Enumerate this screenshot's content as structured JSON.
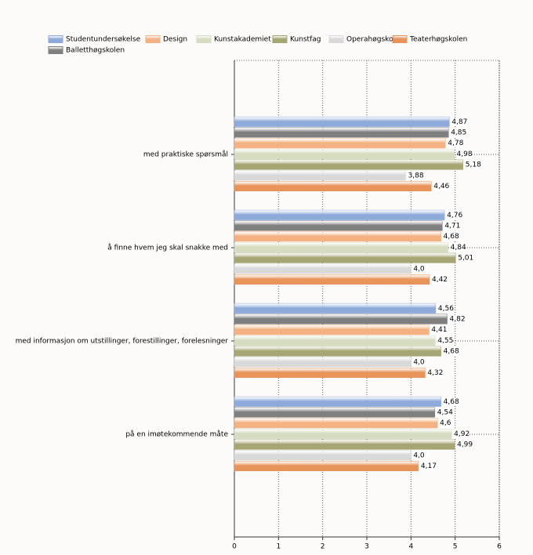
{
  "chart_data": {
    "type": "bar",
    "orientation": "horizontal",
    "categories": [
      "med praktiske spørsmål",
      "å finne hvem jeg skal snakke med",
      "med informasjon om utstillinger, forestillinger, forelesninger",
      "på en imøtekommende måte"
    ],
    "series": [
      {
        "name": "Studentundersøkelse",
        "color": "#8eaadb",
        "values": [
          4.87,
          4.76,
          4.56,
          4.68
        ],
        "value_labels": [
          "4,87",
          "4,76",
          "4,56",
          "4,68"
        ]
      },
      {
        "name": "Balletthøgskolen",
        "color": "#7f7f7f",
        "values": [
          4.85,
          4.71,
          4.82,
          4.54
        ],
        "value_labels": [
          "4,85",
          "4,71",
          "4,82",
          "4,54"
        ]
      },
      {
        "name": "Design",
        "color": "#f4b183",
        "values": [
          4.78,
          4.68,
          4.41,
          4.6
        ],
        "value_labels": [
          "4,78",
          "4,68",
          "4,41",
          "4,6"
        ]
      },
      {
        "name": "Kunstakademiet",
        "color": "#d6dcc0",
        "values": [
          4.98,
          4.84,
          4.55,
          4.92
        ],
        "value_labels": [
          "4,98",
          "4,84",
          "4,55",
          "4,92"
        ]
      },
      {
        "name": "Kunstfag",
        "color": "#a6a674",
        "values": [
          5.18,
          5.01,
          4.68,
          4.99
        ],
        "value_labels": [
          "5,18",
          "5,01",
          "4,68",
          "4,99"
        ]
      },
      {
        "name": "Operahøgskolen",
        "color": "#d9d9d9",
        "values": [
          3.88,
          4.0,
          4.0,
          4.0
        ],
        "value_labels": [
          "3,88",
          "4,0",
          "4,0",
          "4,0"
        ]
      },
      {
        "name": "Teaterhøgskolen",
        "color": "#e8935a",
        "values": [
          4.46,
          4.42,
          4.32,
          4.17
        ],
        "value_labels": [
          "4,46",
          "4,42",
          "4,32",
          "4,17"
        ]
      }
    ],
    "xlim": [
      0,
      6
    ],
    "xticks": [
      0,
      1,
      2,
      3,
      4,
      5,
      6
    ],
    "grid": true
  }
}
